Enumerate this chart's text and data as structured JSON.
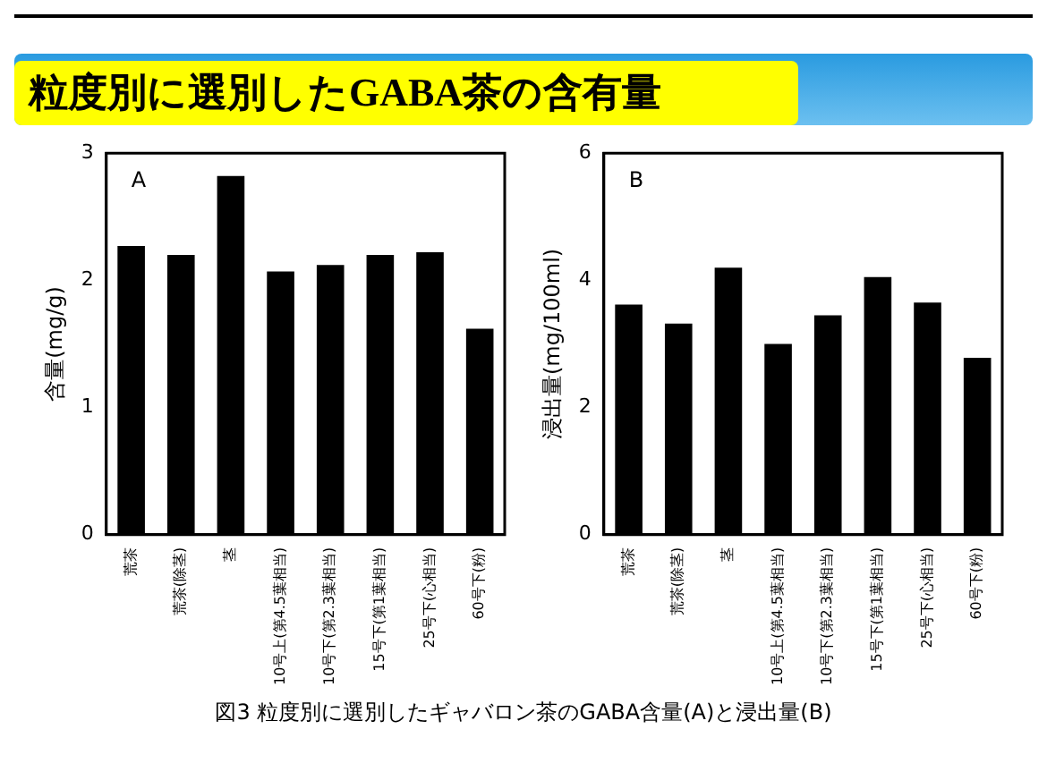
{
  "chart_data": [
    {
      "type": "bar",
      "title": "粒度別に選別したGABA茶の含有量",
      "annotations": [
        "A",
        "図3 粒度別に選別したギャバロン茶のGABA含量(A)と浸出量(B)"
      ],
      "ylabel": "含量(mg/g)",
      "categories": [
        "荒茶",
        "荒茶(除茎)",
        "茎",
        "10号上(第4.5葉相当)",
        "10号下(第2.3葉相当)",
        "15号下(第1葉相当)",
        "25号下(心相当)",
        "60号下(粉)"
      ],
      "values": [
        2.27,
        2.2,
        2.82,
        2.07,
        2.12,
        2.2,
        2.22,
        1.62
      ],
      "color": "#000000",
      "ylim": [
        0,
        3
      ],
      "yticks": [
        0,
        1,
        2,
        3
      ],
      "grid": false,
      "legend": false
    },
    {
      "type": "bar",
      "annotations": [
        "B"
      ],
      "ylabel": "浸出量(mg/100ml)",
      "categories": [
        "荒茶",
        "荒茶(除茎)",
        "茎",
        "10号上(第4.5葉相当)",
        "10号下(第2.3葉相当)",
        "15号下(第1葉相当)",
        "25号下(心相当)",
        "60号下(粉)"
      ],
      "values": [
        3.62,
        3.32,
        4.2,
        3.0,
        3.45,
        4.05,
        3.65,
        2.78
      ],
      "color": "#000000",
      "ylim": [
        0,
        6
      ],
      "yticks": [
        0,
        2,
        4,
        6
      ],
      "grid": false,
      "legend": false
    }
  ]
}
